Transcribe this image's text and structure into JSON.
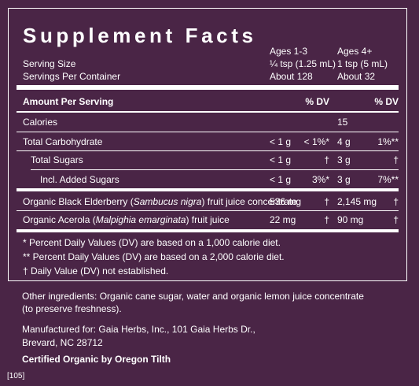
{
  "title": "Supplement Facts",
  "serving": {
    "size_label": "Serving Size",
    "servings_label": "Servings Per Container",
    "col1": {
      "header": "Ages 1-3",
      "size": "¼ tsp (1.25 mL)",
      "servings": "About 128"
    },
    "col2": {
      "header": "Ages 4+",
      "size": "1 tsp (5 mL)",
      "servings": "About 32"
    }
  },
  "table_header": {
    "amount": "Amount Per Serving",
    "dv1": "% DV",
    "dv2": "% DV"
  },
  "rows": [
    {
      "name": "Calories",
      "amt1": "",
      "dv1": "",
      "amt2": "15",
      "dv2": ""
    },
    {
      "name": "Total Carbohydrate",
      "amt1": "< 1 g",
      "dv1": "< 1%*",
      "amt2": "4 g",
      "dv2": "1%**"
    },
    {
      "name": "Total Sugars",
      "amt1": "< 1 g",
      "dv1": "†",
      "amt2": "3 g",
      "dv2": "†"
    },
    {
      "name": "Incl. Added Sugars",
      "amt1": "< 1 g",
      "dv1": "3%*",
      "amt2": "3 g",
      "dv2": "7%**"
    },
    {
      "name_prefix": "Organic Black Elderberry (",
      "name_italic": "Sambucus nigra",
      "name_suffix": ") fruit juice concentrate",
      "amt1": "536 mg",
      "dv1": "†",
      "amt2": "2,145 mg",
      "dv2": "†"
    },
    {
      "name_prefix": "Organic Acerola (",
      "name_italic": "Malpighia emarginata",
      "name_suffix": ") fruit juice",
      "amt1": "22 mg",
      "dv1": "†",
      "amt2": "90 mg",
      "dv2": "†"
    }
  ],
  "footnotes": [
    "*  Percent Daily Values (DV) are based on a 1,000 calorie diet.",
    "** Percent Daily Values (DV) are based on a 2,000 calorie diet.",
    "†  Daily Value (DV) not established."
  ],
  "ingredients": {
    "line1": "Other ingredients: Organic cane sugar, water and organic lemon juice concentrate",
    "line2": "(to preserve freshness)."
  },
  "manufacturer": {
    "line1": "Manufactured for: Gaia Herbs, Inc., 101 Gaia Herbs Dr.,",
    "line2": "Brevard, NC 28712"
  },
  "certification": "Certified Organic by Oregon Tilth",
  "code": "[105]"
}
